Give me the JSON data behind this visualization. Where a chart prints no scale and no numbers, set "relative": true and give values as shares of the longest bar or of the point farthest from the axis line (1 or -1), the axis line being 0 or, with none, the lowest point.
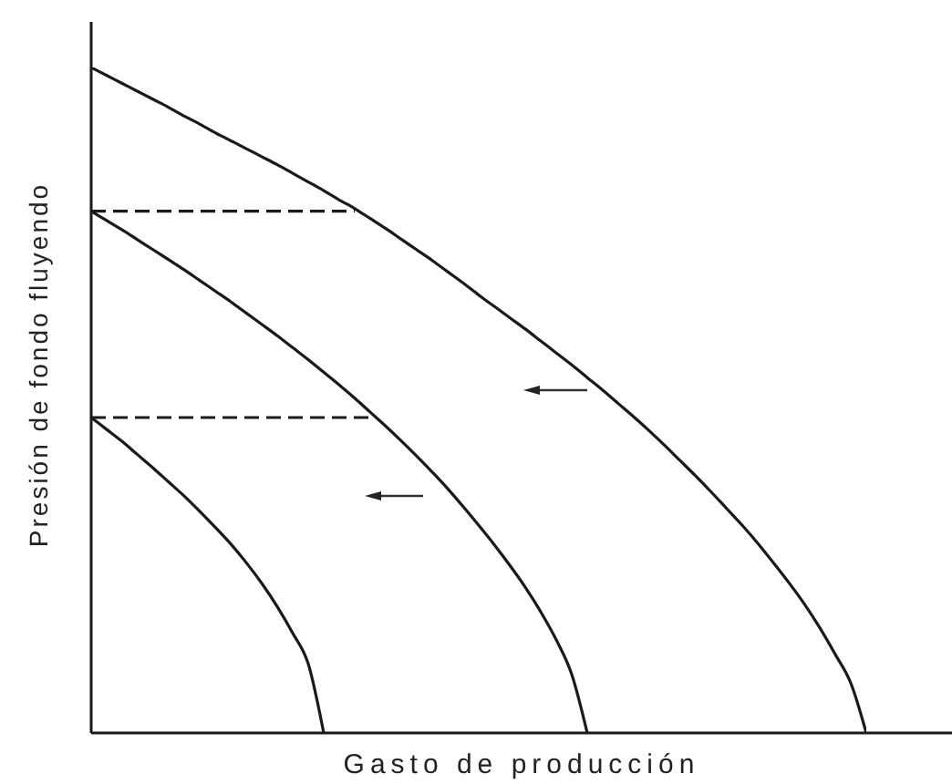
{
  "chart_data": {
    "type": "line",
    "xlabel": "Gasto de producción",
    "ylabel": "Presión de fondo fluyendo",
    "relative": true,
    "tick_labels": false,
    "marker": "none",
    "categories": [
      null,
      null,
      null,
      null,
      null,
      null,
      null,
      null,
      null,
      null,
      null,
      null,
      null,
      null,
      null,
      null,
      null,
      null,
      null,
      null,
      null,
      null,
      null,
      null,
      null,
      null,
      null,
      null,
      null,
      null,
      null,
      null,
      null,
      null,
      null,
      null,
      null,
      null,
      null,
      null,
      null,
      null,
      null,
      null,
      null,
      null,
      null,
      null,
      null,
      null,
      null
    ],
    "series": [
      {
        "color": "#1a1a1a",
        "values": [
          1,
          0.988,
          0.976,
          0.964,
          0.952,
          0.94,
          0.927,
          0.915,
          0.902,
          0.89,
          0.878,
          0.866,
          0.854,
          0.841,
          0.828,
          0.815,
          0.801,
          0.788,
          0.773,
          0.758,
          0.742,
          0.726,
          0.71,
          0.693,
          0.676,
          0.658,
          0.641,
          0.624,
          0.607,
          0.589,
          0.571,
          0.553,
          0.534,
          0.515,
          0.495,
          0.475,
          0.454,
          0.432,
          0.409,
          0.386,
          0.362,
          0.337,
          0.312,
          0.285,
          0.256,
          0.226,
          0.194,
          0.158,
          0.118,
          0.075,
          0
        ]
      },
      {
        "color": "#1a1a1a",
        "values": [
          0.784,
          0.77,
          0.756,
          0.741,
          0.726,
          0.711,
          0.696,
          0.68,
          0.664,
          0.648,
          0.631,
          0.614,
          0.597,
          0.579,
          0.561,
          0.542,
          0.523,
          0.503,
          0.482,
          0.461,
          0.439,
          0.416,
          0.392,
          0.367,
          0.34,
          0.312,
          0.283,
          0.252,
          0.219,
          0.182,
          0.14,
          0.088,
          0,
          null,
          null,
          null,
          null,
          null,
          null,
          null,
          null,
          null,
          null,
          null,
          null,
          null,
          null,
          null,
          null,
          null,
          null
        ]
      },
      {
        "color": "#1a1a1a",
        "values": [
          0.474,
          0.456,
          0.438,
          0.418,
          0.398,
          0.377,
          0.356,
          0.333,
          0.309,
          0.284,
          0.256,
          0.225,
          0.19,
          0.15,
          0.104,
          0,
          null,
          null,
          null,
          null,
          null,
          null,
          null,
          null,
          null,
          null,
          null,
          null,
          null,
          null,
          null,
          null,
          null,
          null,
          null,
          null,
          null,
          null,
          null,
          null,
          null,
          null,
          null,
          null,
          null,
          null,
          null,
          null,
          null,
          null,
          null
        ]
      },
      {
        "type": "line",
        "line_style": "dashed",
        "color": "#1a1a1a",
        "values": [
          0.784,
          0.784,
          0.784,
          0.784,
          0.784,
          0.784,
          0.784,
          0.784,
          0.784,
          0.784,
          0.784,
          0.784,
          0.784,
          0.784,
          0.784,
          0.784,
          0.784,
          0.784,
          null,
          null,
          null,
          null,
          null,
          null,
          null,
          null,
          null,
          null,
          null,
          null,
          null,
          null,
          null,
          null,
          null,
          null,
          null,
          null,
          null,
          null,
          null,
          null,
          null,
          null,
          null,
          null,
          null,
          null,
          null,
          null,
          null
        ]
      },
      {
        "type": "line",
        "line_style": "dashed",
        "color": "#1a1a1a",
        "values": [
          0.474,
          0.474,
          0.474,
          0.474,
          0.474,
          0.474,
          0.474,
          0.474,
          0.474,
          0.474,
          0.474,
          0.474,
          0.474,
          0.474,
          0.474,
          0.474,
          0.474,
          0.474,
          0.474,
          null,
          null,
          null,
          null,
          null,
          null,
          null,
          null,
          null,
          null,
          null,
          null,
          null,
          null,
          null,
          null,
          null,
          null,
          null,
          null,
          null,
          null,
          null,
          null,
          null,
          null,
          null,
          null,
          null,
          null,
          null,
          null
        ]
      }
    ]
  }
}
